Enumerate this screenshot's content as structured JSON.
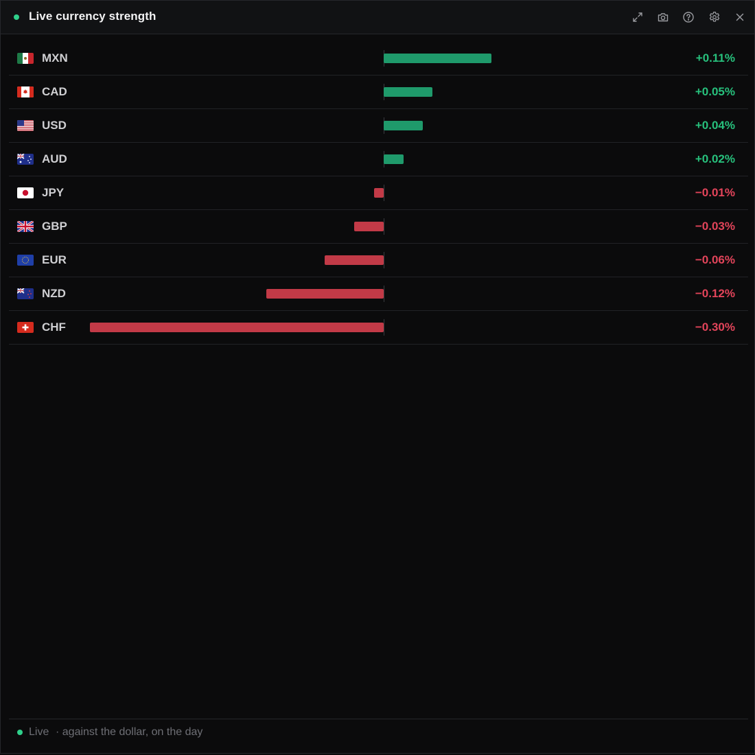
{
  "window": {
    "title": "Live currency strength",
    "icons": [
      "expand-icon",
      "camera-icon",
      "help-icon",
      "gear-icon",
      "close-icon"
    ]
  },
  "colors": {
    "positive": "#1f9a6b",
    "negative": "#c23a47",
    "live": "#2fcf8a"
  },
  "rows": [
    {
      "code": "MXN",
      "value": 0.11,
      "label": "+0.11%",
      "flag": "mx"
    },
    {
      "code": "CAD",
      "value": 0.05,
      "label": "+0.05%",
      "flag": "ca"
    },
    {
      "code": "USD",
      "value": 0.04,
      "label": "+0.04%",
      "flag": "us"
    },
    {
      "code": "AUD",
      "value": 0.02,
      "label": "+0.02%",
      "flag": "au"
    },
    {
      "code": "JPY",
      "value": -0.01,
      "label": "−0.01%",
      "flag": "jp"
    },
    {
      "code": "GBP",
      "value": -0.03,
      "label": "−0.03%",
      "flag": "gb"
    },
    {
      "code": "EUR",
      "value": -0.06,
      "label": "−0.06%",
      "flag": "eu"
    },
    {
      "code": "NZD",
      "value": -0.12,
      "label": "−0.12%",
      "flag": "nz"
    },
    {
      "code": "CHF",
      "value": -0.3,
      "label": "−0.30%",
      "flag": "ch"
    }
  ],
  "footer": {
    "status": "Live",
    "note": "· against the dollar, on the day"
  }
}
